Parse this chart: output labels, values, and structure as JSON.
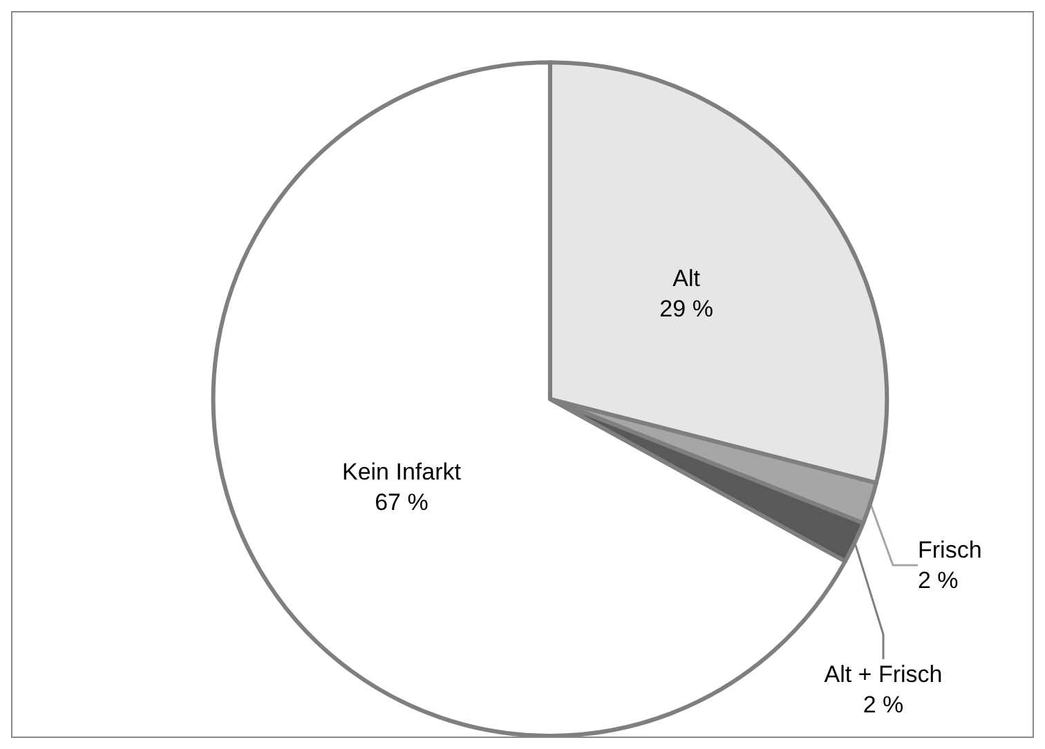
{
  "chart_data": {
    "type": "pie",
    "categories": [
      "Alt",
      "Frisch",
      "Alt + Frisch",
      "Kein Infarkt"
    ],
    "values": [
      29,
      2,
      2,
      67
    ],
    "value_labels": [
      "29 %",
      "2 %",
      "2 %",
      "67 %"
    ],
    "colors": [
      "#e6e6e6",
      "#a6a6a6",
      "#595959",
      "#ffffff"
    ],
    "legend": false
  }
}
